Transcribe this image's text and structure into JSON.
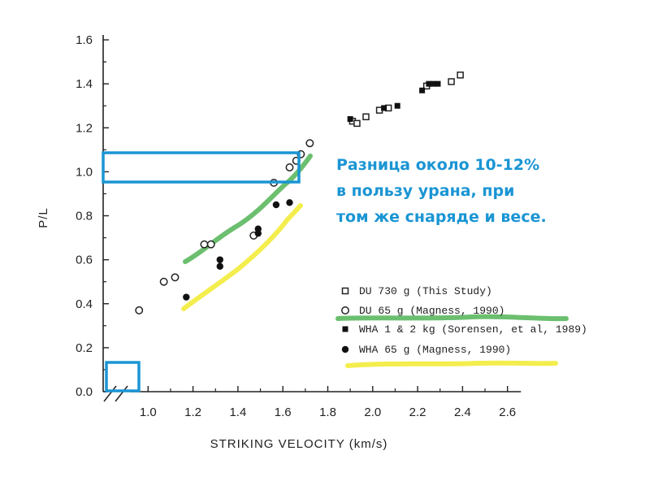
{
  "chart_data": {
    "type": "scatter",
    "xlabel": "STRIKING VELOCITY (km/s)",
    "ylabel": "P/L",
    "xlim": [
      0.8,
      2.7
    ],
    "ylim": [
      0.0,
      1.6
    ],
    "x_ticks": [
      1.0,
      1.2,
      1.4,
      1.6,
      1.8,
      2.0,
      2.2,
      2.4,
      2.6
    ],
    "x_tick_labels": [
      "1.0",
      "1.2",
      "1.4",
      "1.6",
      "1.8",
      "2.0",
      "2.2",
      "2.4",
      "2.6"
    ],
    "y_ticks": [
      0.0,
      0.2,
      0.4,
      0.6,
      0.8,
      1.0,
      1.2,
      1.4,
      1.6
    ],
    "y_tick_labels": [
      "0.0",
      "0.2",
      "0.4",
      "0.6",
      "0.8",
      "1.0",
      "1.2",
      "1.4",
      "1.6"
    ],
    "grid": false,
    "legend_position": "bottom-right",
    "series": [
      {
        "name": "DU 730 g (This Study)",
        "marker": "open-square",
        "points": [
          [
            1.91,
            1.23
          ],
          [
            1.93,
            1.22
          ],
          [
            1.97,
            1.25
          ],
          [
            2.03,
            1.28
          ],
          [
            2.07,
            1.29
          ],
          [
            2.24,
            1.39
          ],
          [
            2.35,
            1.41
          ],
          [
            2.39,
            1.44
          ]
        ]
      },
      {
        "name": "DU 65 g (Magness, 1990)",
        "marker": "open-circle",
        "points": [
          [
            0.96,
            0.37
          ],
          [
            1.07,
            0.5
          ],
          [
            1.12,
            0.52
          ],
          [
            1.25,
            0.67
          ],
          [
            1.28,
            0.67
          ],
          [
            1.47,
            0.71
          ],
          [
            1.56,
            0.95
          ],
          [
            1.63,
            1.02
          ],
          [
            1.66,
            1.05
          ],
          [
            1.68,
            1.08
          ],
          [
            1.72,
            1.13
          ]
        ]
      },
      {
        "name": "WHA 1 & 2 kg (Sorensen, et al, 1989)",
        "marker": "filled-square",
        "points": [
          [
            1.9,
            1.24
          ],
          [
            2.05,
            1.29
          ],
          [
            2.11,
            1.3
          ],
          [
            2.22,
            1.37
          ],
          [
            2.25,
            1.4
          ],
          [
            2.27,
            1.4
          ],
          [
            2.29,
            1.4
          ]
        ]
      },
      {
        "name": "WHA 65 g (Magness, 1990)",
        "marker": "filled-circle",
        "points": [
          [
            1.17,
            0.43
          ],
          [
            1.32,
            0.6
          ],
          [
            1.32,
            0.57
          ],
          [
            1.49,
            0.72
          ],
          [
            1.49,
            0.74
          ],
          [
            1.57,
            0.85
          ],
          [
            1.63,
            0.86
          ]
        ]
      }
    ],
    "annotations": {
      "text_lines": [
        "Разница около 10-12%",
        "в пользу урана, при",
        "том же снаряде и весе."
      ],
      "highlight_box_color": "#1a95d4",
      "green_color": "#5bb85f",
      "yellow_color": "#f2ec3a"
    }
  }
}
